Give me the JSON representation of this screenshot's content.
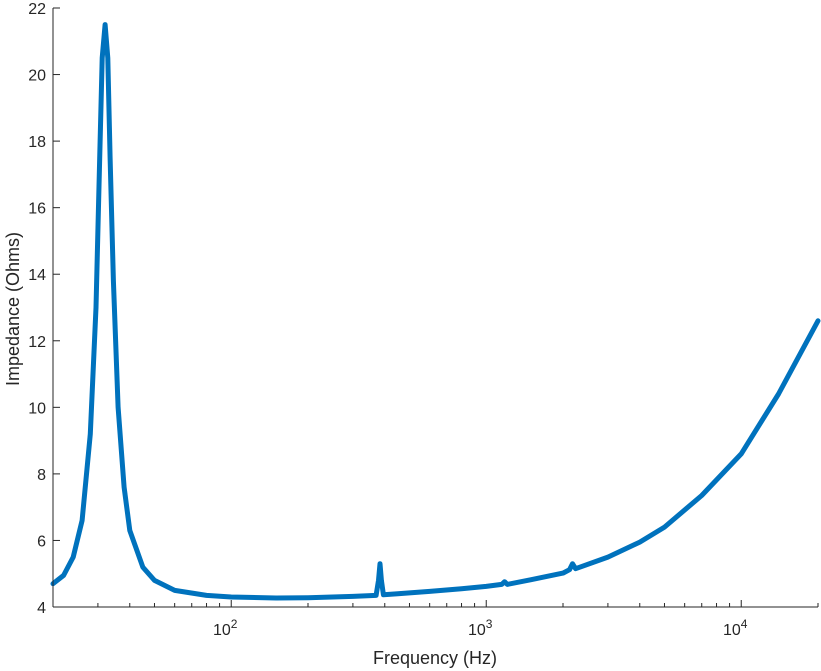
{
  "chart_data": {
    "type": "line",
    "xlabel": "Frequency (Hz)",
    "ylabel": "Impedance (Ohms)",
    "xscale": "log",
    "xlim": [
      20,
      20000
    ],
    "ylim": [
      4,
      22
    ],
    "grid": false,
    "legend": "none",
    "x_tick_labels": [
      {
        "value": 100,
        "base": "10",
        "exp": "2"
      },
      {
        "value": 1000,
        "base": "10",
        "exp": "3"
      },
      {
        "value": 10000,
        "base": "10",
        "exp": "4"
      }
    ],
    "y_ticks": [
      4,
      6,
      8,
      10,
      12,
      14,
      16,
      18,
      20,
      22
    ],
    "y_tick_labels": [
      "4",
      "6",
      "8",
      "10",
      "12",
      "14",
      "16",
      "18",
      "20",
      "22"
    ],
    "series": [
      {
        "color": "#0072BD",
        "points": [
          [
            20,
            4.7
          ],
          [
            22,
            4.95
          ],
          [
            24,
            5.5
          ],
          [
            26,
            6.6
          ],
          [
            28,
            9.2
          ],
          [
            29.5,
            13.0
          ],
          [
            30.5,
            17.5
          ],
          [
            31.2,
            20.5
          ],
          [
            32,
            21.5
          ],
          [
            32.8,
            20.5
          ],
          [
            33.5,
            17.5
          ],
          [
            34.5,
            13.8
          ],
          [
            36,
            10.0
          ],
          [
            38,
            7.6
          ],
          [
            40,
            6.3
          ],
          [
            45,
            5.2
          ],
          [
            50,
            4.8
          ],
          [
            60,
            4.5
          ],
          [
            80,
            4.35
          ],
          [
            100,
            4.3
          ],
          [
            150,
            4.27
          ],
          [
            200,
            4.28
          ],
          [
            300,
            4.32
          ],
          [
            370,
            4.35
          ],
          [
            378,
            4.8
          ],
          [
            383,
            5.3
          ],
          [
            388,
            4.8
          ],
          [
            395,
            4.37
          ],
          [
            450,
            4.4
          ],
          [
            600,
            4.47
          ],
          [
            800,
            4.55
          ],
          [
            1000,
            4.62
          ],
          [
            1150,
            4.68
          ],
          [
            1180,
            4.76
          ],
          [
            1210,
            4.68
          ],
          [
            1500,
            4.82
          ],
          [
            2000,
            5.02
          ],
          [
            2120,
            5.12
          ],
          [
            2180,
            5.3
          ],
          [
            2240,
            5.15
          ],
          [
            3000,
            5.5
          ],
          [
            4000,
            5.95
          ],
          [
            5000,
            6.4
          ],
          [
            7000,
            7.35
          ],
          [
            10000,
            8.6
          ],
          [
            14000,
            10.4
          ],
          [
            20000,
            12.6
          ]
        ]
      }
    ]
  }
}
